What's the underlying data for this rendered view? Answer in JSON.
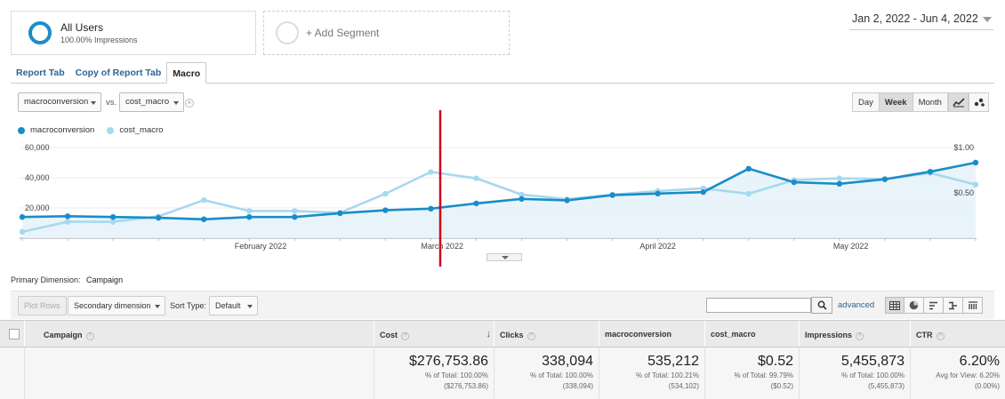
{
  "segments": {
    "all_users": {
      "title": "All Users",
      "subtitle": "100.00% Impressions"
    },
    "add_label": "+ Add Segment"
  },
  "date_range": "Jan 2, 2022 - Jun 4, 2022",
  "tabs": [
    {
      "label": "Report Tab",
      "active": false
    },
    {
      "label": "Copy of Report Tab",
      "active": false
    },
    {
      "label": "Macro",
      "active": true
    }
  ],
  "metric_selector": {
    "metric1": "macroconversion",
    "vs": "vs.",
    "metric2": "cost_macro"
  },
  "granularity": {
    "day": "Day",
    "week": "Week",
    "month": "Month",
    "active": "Week"
  },
  "legend": [
    {
      "label": "macroconversion",
      "color": "#1a8dc8"
    },
    {
      "label": "cost_macro",
      "color": "#a7d8ef"
    }
  ],
  "chart_data": {
    "type": "line",
    "x_tick_labels": [
      "February 2022",
      "March 2022",
      "April 2022",
      "May 2022"
    ],
    "left_axis_ticks": [
      "60,000",
      "40,000",
      "20,000"
    ],
    "right_axis_ticks": [
      "$1.00",
      "$0.50"
    ],
    "left_ylim": [
      0,
      60000
    ],
    "right_ylim": [
      0,
      1.0
    ],
    "series": [
      {
        "name": "macroconversion",
        "axis": "left",
        "color": "#1a8dc8",
        "values": [
          14000,
          14500,
          14000,
          13500,
          12500,
          14000,
          14000,
          16500,
          18500,
          19500,
          23000,
          26000,
          25000,
          28500,
          29500,
          30500,
          46000,
          37000,
          36000,
          39000,
          44000,
          50000
        ]
      },
      {
        "name": "cost_macro",
        "axis": "right",
        "color": "#a7d8ef",
        "values": [
          0.07,
          0.18,
          0.18,
          0.24,
          0.42,
          0.3,
          0.3,
          0.28,
          0.49,
          0.73,
          0.66,
          0.48,
          0.43,
          0.48,
          0.52,
          0.55,
          0.49,
          0.64,
          0.66,
          0.65,
          0.72,
          0.59
        ]
      }
    ]
  },
  "annotation": {
    "color": "#d0021b"
  },
  "primary_dimension": {
    "label": "Primary Dimension:",
    "value": "Campaign"
  },
  "toolbar": {
    "plot_rows": "Plot Rows",
    "secondary_dimension": "Secondary dimension",
    "sort_type_label": "Sort Type:",
    "sort_type_value": "Default",
    "search_placeholder": "",
    "advanced": "advanced"
  },
  "table": {
    "columns": [
      {
        "label": "Campaign",
        "help": "?"
      },
      {
        "label": "Cost",
        "help": "?",
        "sorted": true
      },
      {
        "label": "Clicks",
        "help": "?"
      },
      {
        "label": "macroconversion",
        "help": ""
      },
      {
        "label": "cost_macro",
        "help": ""
      },
      {
        "label": "Impressions",
        "help": "?"
      },
      {
        "label": "CTR",
        "help": "?"
      }
    ],
    "totals": [
      {
        "value": "$276,753.86",
        "line1": "% of Total: 100.00%",
        "line2": "($276,753.86)"
      },
      {
        "value": "338,094",
        "line1": "% of Total: 100.00%",
        "line2": "(338,094)"
      },
      {
        "value": "535,212",
        "line1": "% of Total: 100.21%",
        "line2": "(534,102)"
      },
      {
        "value": "$0.52",
        "line1": "% of Total: 99.79%",
        "line2": "($0.52)"
      },
      {
        "value": "5,455,873",
        "line1": "% of Total: 100.00%",
        "line2": "(5,455,873)"
      },
      {
        "value": "6.20%",
        "line1": "Avg for View: 6.20%",
        "line2": "(0.00%)"
      }
    ]
  }
}
